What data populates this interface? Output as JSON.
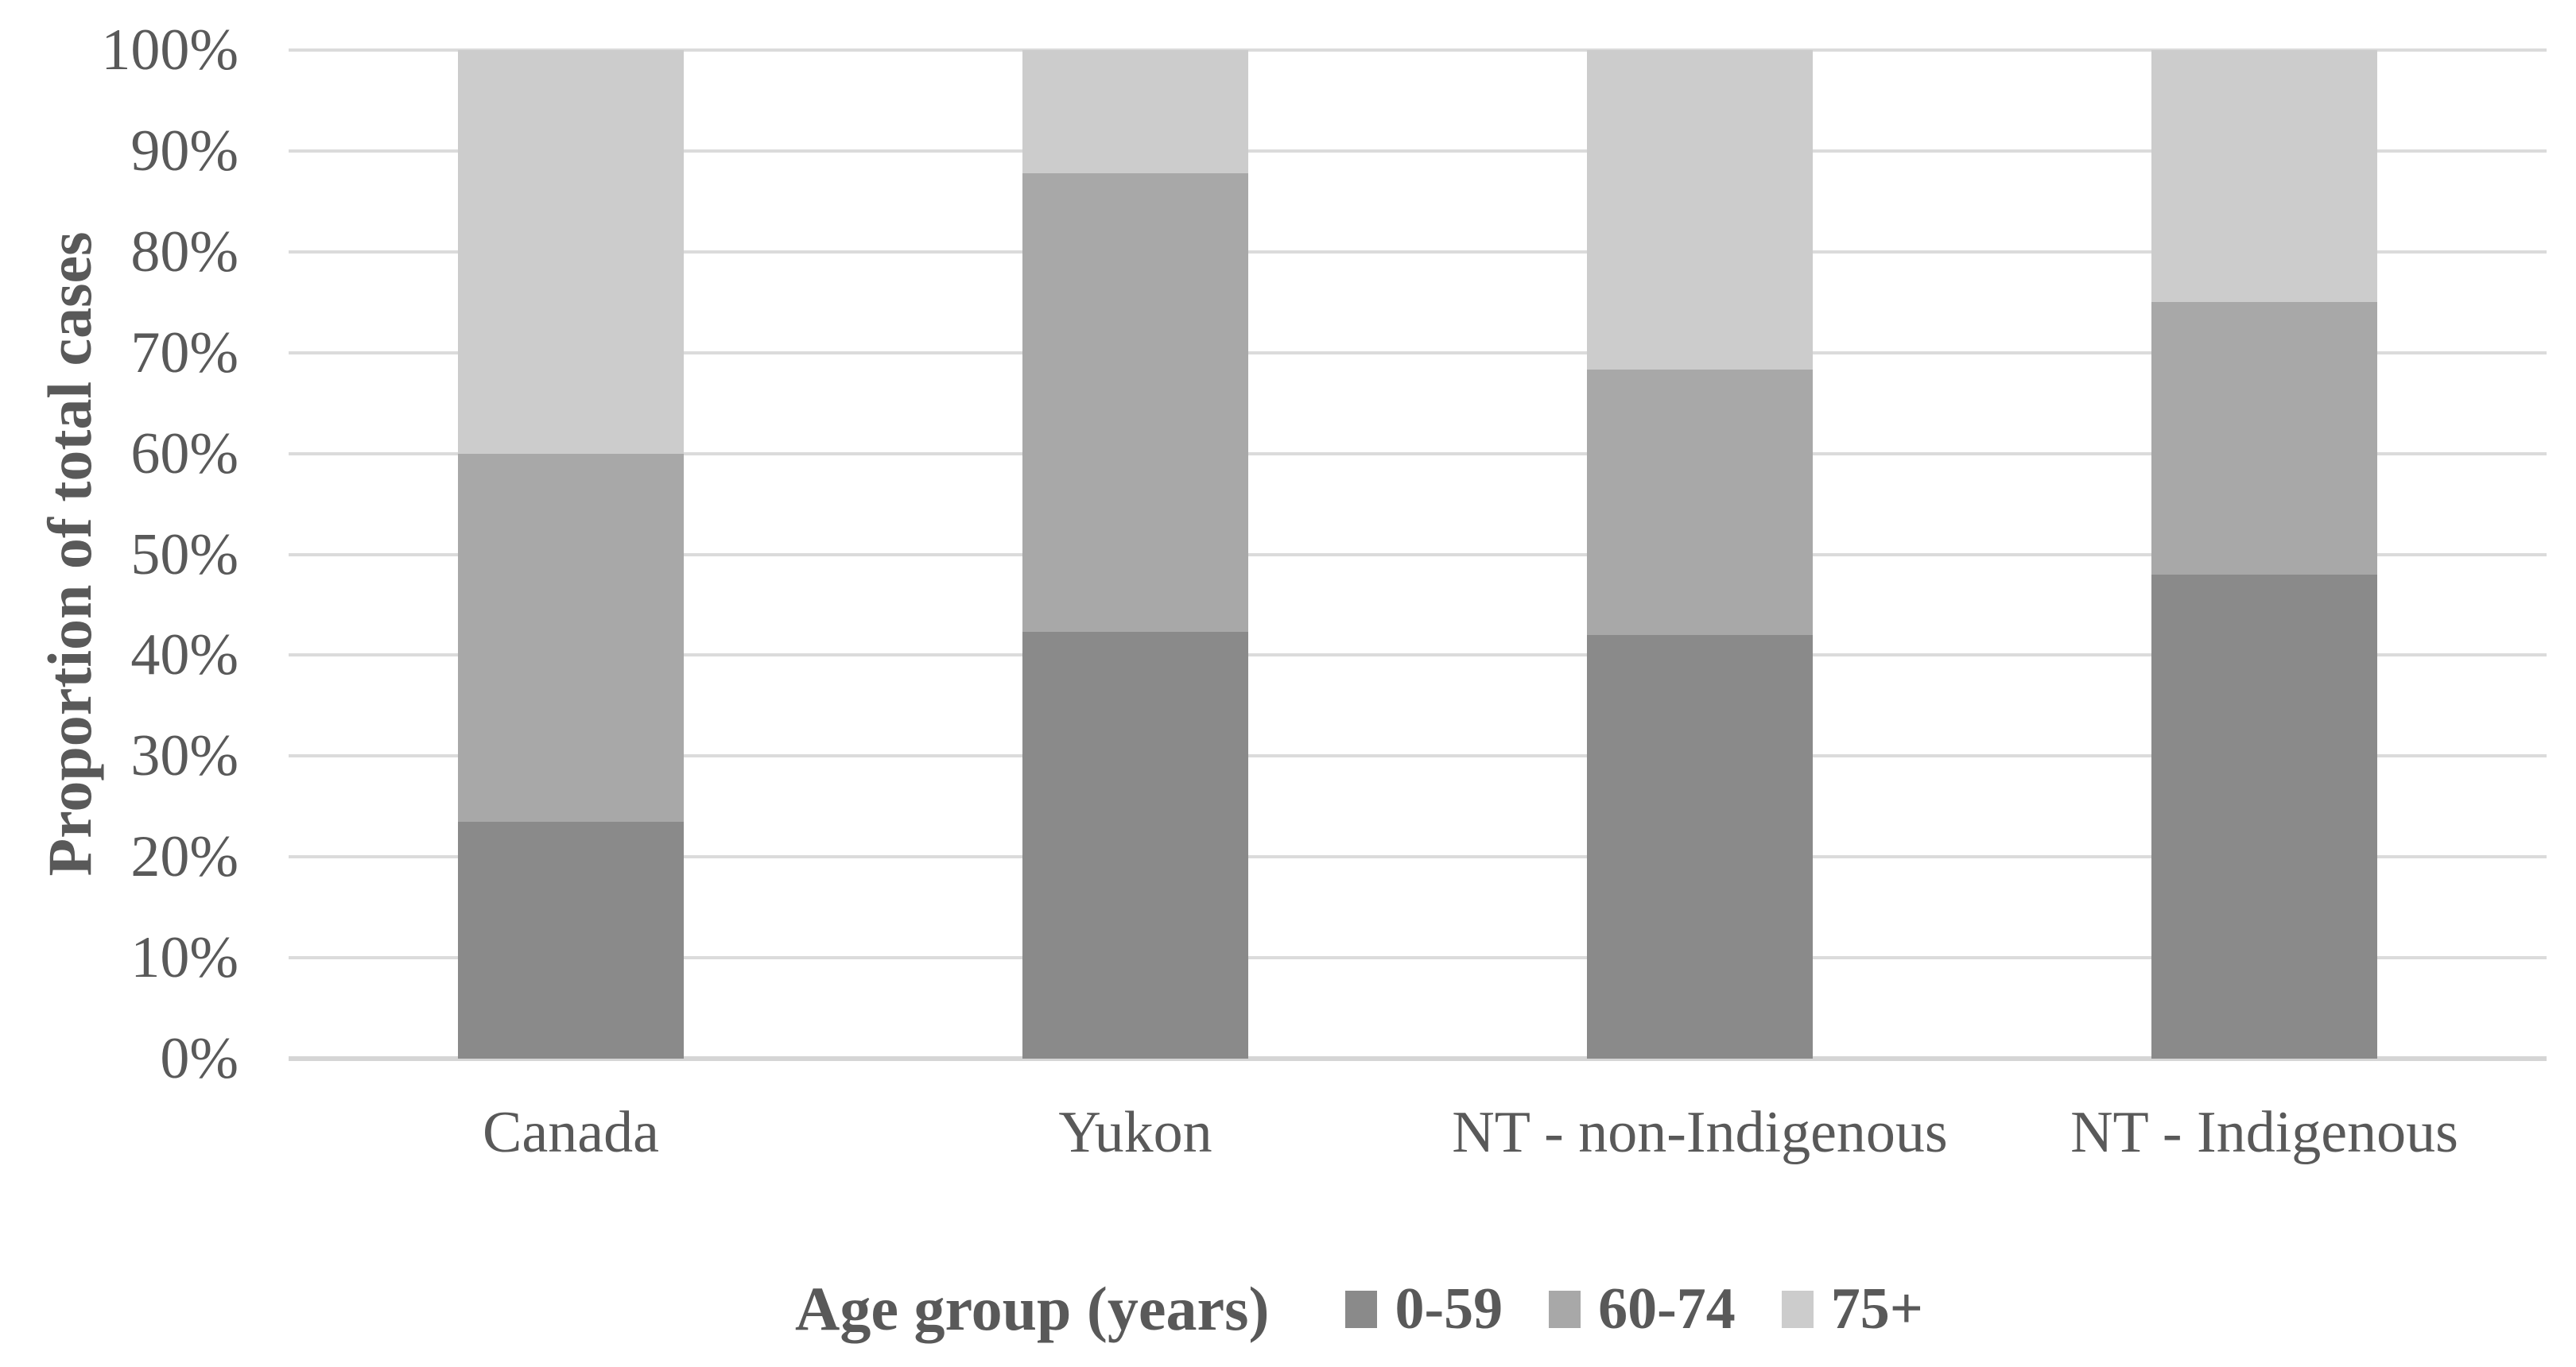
{
  "figure": {
    "background_color": "#FFFFFF",
    "text_color": "#595959",
    "gridline_color": "#DBDBDB",
    "axis_line_color": "#D5D5D5"
  },
  "chart_data": {
    "type": "bar",
    "subtype": "100%-stacked-column",
    "title": "",
    "xlabel": "",
    "ylabel": "Proportion of total cases",
    "legend_title": "Age group (years)",
    "legend_position": "bottom",
    "grid": true,
    "ylim": [
      0,
      100
    ],
    "ytick_step": 10,
    "ytick_labels": [
      "0%",
      "10%",
      "20%",
      "30%",
      "40%",
      "50%",
      "60%",
      "70%",
      "80%",
      "90%",
      "100%"
    ],
    "categories": [
      "Canada",
      "Yukon",
      "NT - non-Indigenous",
      "NT - Indigenous"
    ],
    "series": [
      {
        "name": "0-59",
        "color": "#8A8A8A",
        "values": [
          23.5,
          42.3,
          42.0,
          48.0
        ]
      },
      {
        "name": "60-74",
        "color": "#A8A8A8",
        "values": [
          36.5,
          45.5,
          26.3,
          27.0
        ]
      },
      {
        "name": "75+",
        "color": "#CCCCCC",
        "values": [
          40.0,
          12.2,
          31.7,
          25.0
        ]
      }
    ],
    "units": "percent of total cases"
  }
}
